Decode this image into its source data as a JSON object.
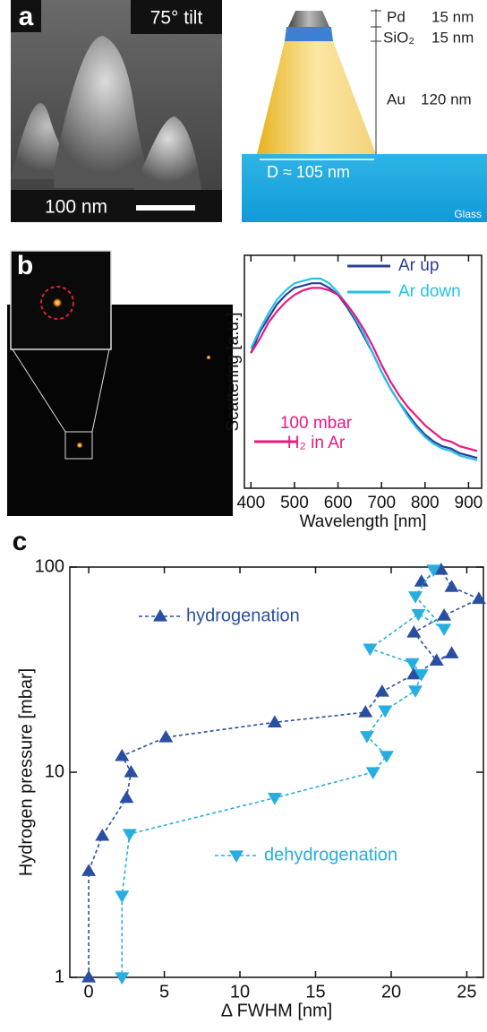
{
  "panel_a": {
    "label": "a",
    "tilt": "75° tilt",
    "scale_bar": "100 nm"
  },
  "schematic": {
    "pd": "Pd",
    "pd_thickness": "15 nm",
    "sio2": "SiO₂",
    "sio2_thickness": "15 nm",
    "au": "Au",
    "au_thickness": "120 nm",
    "diameter": "D ≈ 105 nm",
    "substrate": "Glass"
  },
  "panel_b": {
    "label": "b"
  },
  "panel_c": {
    "label": "c"
  },
  "chart_data": [
    {
      "type": "line",
      "xlabel": "Wavelength [nm]",
      "ylabel": "Scattering [a.u.]",
      "x": [
        400,
        420,
        440,
        460,
        480,
        500,
        520,
        540,
        560,
        580,
        600,
        620,
        640,
        660,
        680,
        700,
        720,
        740,
        760,
        780,
        800,
        820,
        840,
        860,
        880,
        900,
        920
      ],
      "xlim": [
        385,
        930
      ],
      "xticks": [
        400,
        500,
        600,
        700,
        800,
        900
      ],
      "ylim": [
        0,
        1
      ],
      "series": [
        {
          "name": "Ar up",
          "color": "#2b3f98",
          "values": [
            0.58,
            0.67,
            0.73,
            0.79,
            0.83,
            0.86,
            0.87,
            0.88,
            0.88,
            0.86,
            0.83,
            0.78,
            0.72,
            0.65,
            0.58,
            0.5,
            0.43,
            0.37,
            0.32,
            0.27,
            0.23,
            0.2,
            0.18,
            0.17,
            0.15,
            0.14,
            0.13
          ]
        },
        {
          "name": "Ar down",
          "color": "#27c0e8",
          "values": [
            0.6,
            0.68,
            0.75,
            0.81,
            0.85,
            0.88,
            0.89,
            0.9,
            0.9,
            0.88,
            0.84,
            0.79,
            0.73,
            0.66,
            0.58,
            0.5,
            0.43,
            0.37,
            0.31,
            0.26,
            0.22,
            0.19,
            0.17,
            0.16,
            0.14,
            0.13,
            0.12
          ]
        },
        {
          "name": "100 mbar H₂ in Ar",
          "color": "#e8197f",
          "values": [
            0.58,
            0.64,
            0.71,
            0.76,
            0.8,
            0.83,
            0.85,
            0.86,
            0.86,
            0.85,
            0.83,
            0.79,
            0.74,
            0.68,
            0.61,
            0.53,
            0.46,
            0.4,
            0.35,
            0.31,
            0.27,
            0.24,
            0.21,
            0.2,
            0.18,
            0.17,
            0.16
          ]
        }
      ]
    },
    {
      "type": "scatter",
      "xlabel": "Δ FWHM [nm]",
      "ylabel": "Hydrogen pressure [mbar]",
      "log_y": true,
      "xlim": [
        -1.25,
        26.1
      ],
      "xticks": [
        0,
        5,
        10,
        15,
        20,
        25
      ],
      "ylim": [
        1,
        100
      ],
      "yticks": [
        1,
        10,
        100
      ],
      "series": [
        {
          "name": "hydrogenation",
          "color": "#2a4fa0",
          "marker": "triangle-up",
          "linestyle": "dashed",
          "x": [
            0,
            0,
            0.9,
            2.5,
            2.8,
            2.2,
            5.1,
            12.3,
            18.3,
            19.4,
            21.5,
            24,
            23,
            21.5,
            23.5,
            25.8,
            24,
            23.3,
            22
          ],
          "values": [
            1,
            3.3,
            4.9,
            7.5,
            10,
            12,
            14.8,
            17.5,
            19.6,
            24.7,
            30,
            38,
            35,
            48,
            58,
            70,
            80,
            97,
            85
          ]
        },
        {
          "name": "dehydrogenation",
          "color": "#27aee0",
          "marker": "triangle-down",
          "linestyle": "dashed",
          "x": [
            22.8,
            21.6,
            23.5,
            21.8,
            18.6,
            21.4,
            22,
            21.6,
            19.6,
            18.4,
            19.7,
            18.8,
            12.3,
            2.7,
            2.2,
            2.2
          ],
          "values": [
            97,
            72,
            50,
            59,
            40,
            34,
            30,
            25,
            20,
            15,
            12,
            10,
            7.5,
            5,
            2.5,
            1
          ]
        }
      ]
    }
  ]
}
